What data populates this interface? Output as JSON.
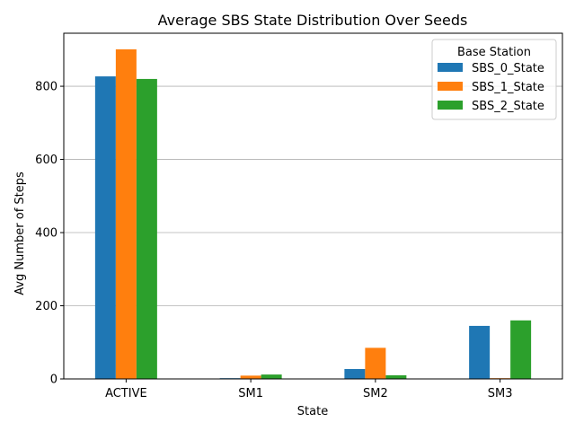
{
  "chart_data": {
    "type": "bar",
    "title": "Average SBS State Distribution Over Seeds",
    "xlabel": "State",
    "ylabel": "Avg Number of Steps",
    "categories": [
      "ACTIVE",
      "SM1",
      "SM2",
      "SM3"
    ],
    "ylim": [
      0,
      945
    ],
    "yticks": [
      0,
      200,
      400,
      600,
      800
    ],
    "grid": "y",
    "legend": {
      "title": "Base Station",
      "placement": "top-right"
    },
    "series": [
      {
        "name": "SBS_0_State",
        "color": "#1f77b4",
        "values": [
          827,
          2,
          27,
          145
        ]
      },
      {
        "name": "SBS_1_State",
        "color": "#ff7f0e",
        "values": [
          901,
          9,
          85,
          2
        ]
      },
      {
        "name": "SBS_2_State",
        "color": "#2ca02c",
        "values": [
          820,
          12,
          10,
          160
        ]
      }
    ]
  }
}
